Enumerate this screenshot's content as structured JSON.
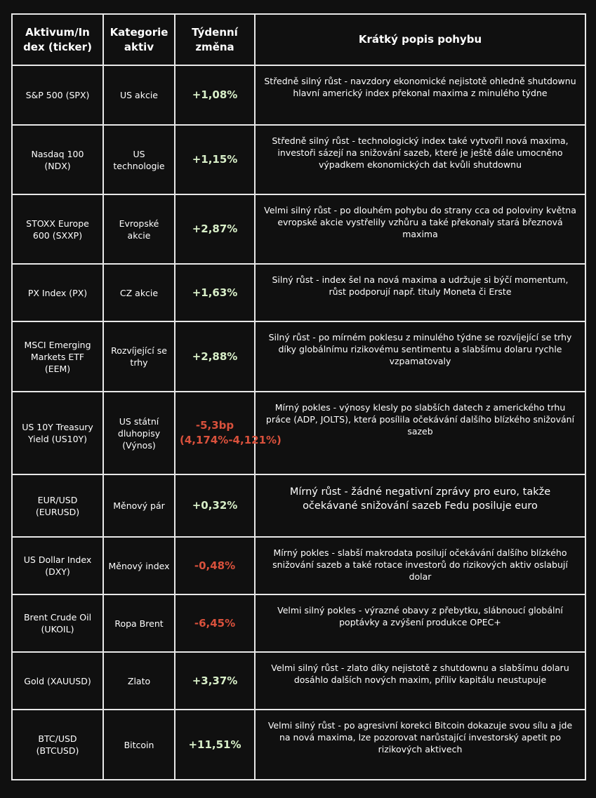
{
  "headers": {
    "asset": "Aktivum/In dex (ticker)",
    "category": "Kategorie aktiv",
    "change": "Týdenní změna",
    "description": "Krátký popis pohybu"
  },
  "colors": {
    "positive": "#d8efc8",
    "negative": "#d9513c"
  },
  "rows": [
    {
      "asset": "S&P 500 (SPX)",
      "category": "US akcie",
      "change": "+1,08%",
      "direction": "positive",
      "description": "Středně silný růst - navzdory ekonomické nejistotě ohledně shutdownu hlavní americký index překonal maxima z minulého týdne"
    },
    {
      "asset": "Nasdaq 100 (NDX)",
      "category": "US technologie",
      "change": "+1,15%",
      "direction": "positive",
      "description": "Středně silný růst - technologický index také vytvořil nová maxima, investoři sázejí na snižování sazeb, které je ještě dále umocněno výpadkem ekonomických dat kvůli shutdownu"
    },
    {
      "asset": "STOXX Europe 600 (SXXP)",
      "category": "Evropské akcie",
      "change": "+2,87%",
      "direction": "positive",
      "description": "Velmi silný růst - po dlouhém pohybu do strany cca od poloviny května evropské akcie vystřelily vzhůru a také překonaly stará březnová maxima"
    },
    {
      "asset": "PX Index (PX)",
      "category": "CZ akcie",
      "change": "+1,63%",
      "direction": "positive",
      "description": "Silný růst - index šel na nová maxima a udržuje si býčí momentum, růst podporují např. tituly Moneta či Erste"
    },
    {
      "asset": "MSCI Emerging Markets ETF (EEM)",
      "category": "Rozvíjející se trhy",
      "change": "+2,88%",
      "direction": "positive",
      "description": "Silný růst - po mírném poklesu z minulého týdne se rozvíjející se trhy díky globálnímu rizikovému sentimentu a slabšímu dolaru rychle vzpamatovaly"
    },
    {
      "asset": "US 10Y Treasury Yield (US10Y)",
      "category": "US státní dluhopisy (Výnos)",
      "change": "-5,3bp (4,174%-4,121%)",
      "direction": "negative",
      "description": "Mírný pokles - výnosy klesly po slabších datech z amerického trhu práce (ADP, JOLTS), která posílila očekávání dalšího blízkého snižování sazeb"
    },
    {
      "asset": "EUR/USD (EURUSD)",
      "category": "Měnový pár",
      "change": "+0,32%",
      "direction": "positive",
      "description": "Mírný růst - žádné negativní zprávy pro euro, takže očekávané snižování sazeb Fedu posiluje euro"
    },
    {
      "asset": "US Dollar Index (DXY)",
      "category": "Měnový index",
      "change": "-0,48%",
      "direction": "negative",
      "description": "Mírný pokles - slabší makrodata posilují očekávání dalšího blízkého snižování sazeb a také rotace investorů do rizikových aktiv oslabují dolar"
    },
    {
      "asset": "Brent Crude Oil (UKOIL)",
      "category": "Ropa Brent",
      "change": "-6,45%",
      "direction": "negative",
      "description": "Velmi silný pokles - výrazné obavy z přebytku, slábnoucí globální poptávky a zvýšení produkce OPEC+"
    },
    {
      "asset": "Gold (XAUUSD)",
      "category": "Zlato",
      "change": "+3,37%",
      "direction": "positive",
      "description": "Velmi silný růst - zlato díky nejistotě z shutdownu a slabšímu dolaru dosáhlo dalších nových maxim, příliv kapitálu neustupuje"
    },
    {
      "asset": "BTC/USD (BTCUSD)",
      "category": "Bitcoin",
      "change": "+11,51%",
      "direction": "positive",
      "description": "Velmi silný růst - po agresivní korekci Bitcoin dokazuje svou sílu a jde na nová maxima, lze pozorovat narůstající investorský apetit po rizikových aktivech"
    }
  ]
}
